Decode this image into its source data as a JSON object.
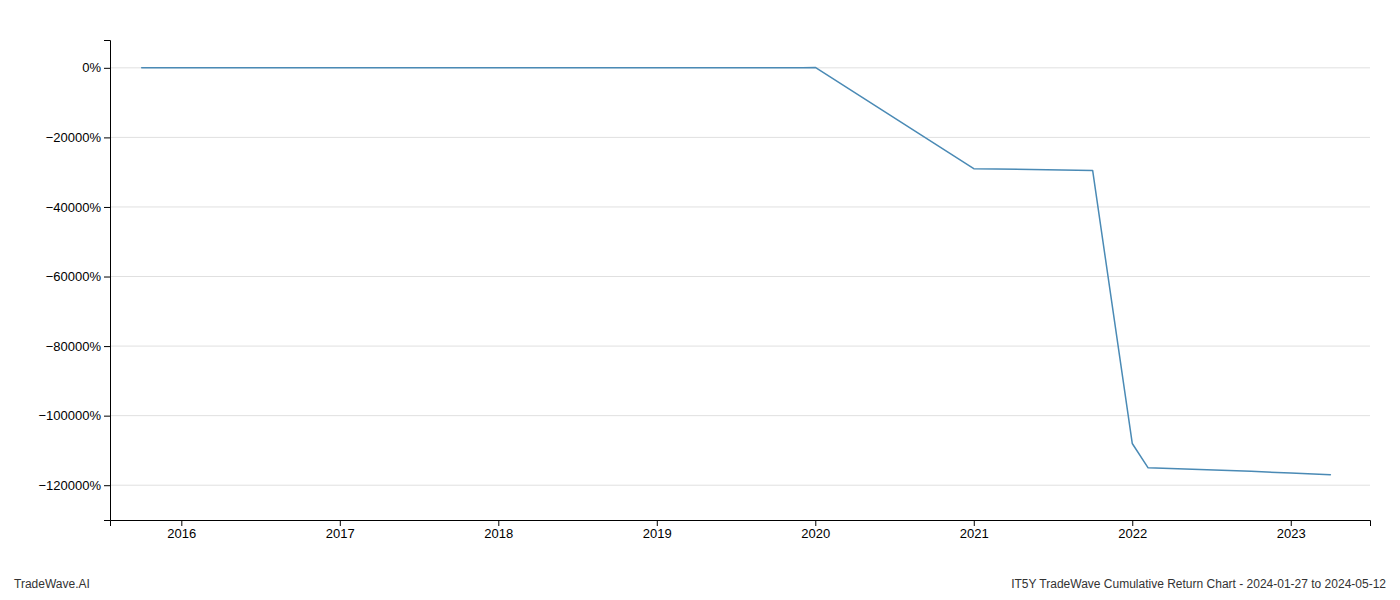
{
  "chart_data": {
    "type": "line",
    "title": "IT5Y TradeWave Cumulative Return Chart - 2024-01-27 to 2024-05-12",
    "annotations": [
      "TradeWave.AI"
    ],
    "x": [
      2015.75,
      2016.0,
      2017.0,
      2018.0,
      2019.0,
      2019.92,
      2020.0,
      2021.0,
      2021.75,
      2022.0,
      2022.1,
      2022.75,
      2023.0,
      2023.25
    ],
    "values": [
      0,
      0,
      0,
      0,
      0,
      0,
      100,
      -29000,
      -29500,
      -108000,
      -115000,
      -116000,
      -116500,
      -117000
    ],
    "color": "#4a8ab5",
    "xlim": [
      2015.55,
      2023.5
    ],
    "ylim": [
      -130000,
      8000
    ],
    "xticks": [
      2016,
      2017,
      2018,
      2019,
      2020,
      2021,
      2022,
      2023
    ],
    "yticks": [
      {
        "value": 0,
        "label": "0%"
      },
      {
        "value": -20000,
        "label": "−20000%"
      },
      {
        "value": -40000,
        "label": "−40000%"
      },
      {
        "value": -60000,
        "label": "−60000%"
      },
      {
        "value": -80000,
        "label": "−80000%"
      },
      {
        "value": -100000,
        "label": "−100000%"
      },
      {
        "value": -120000,
        "label": "−120000%"
      }
    ],
    "grid": true
  }
}
